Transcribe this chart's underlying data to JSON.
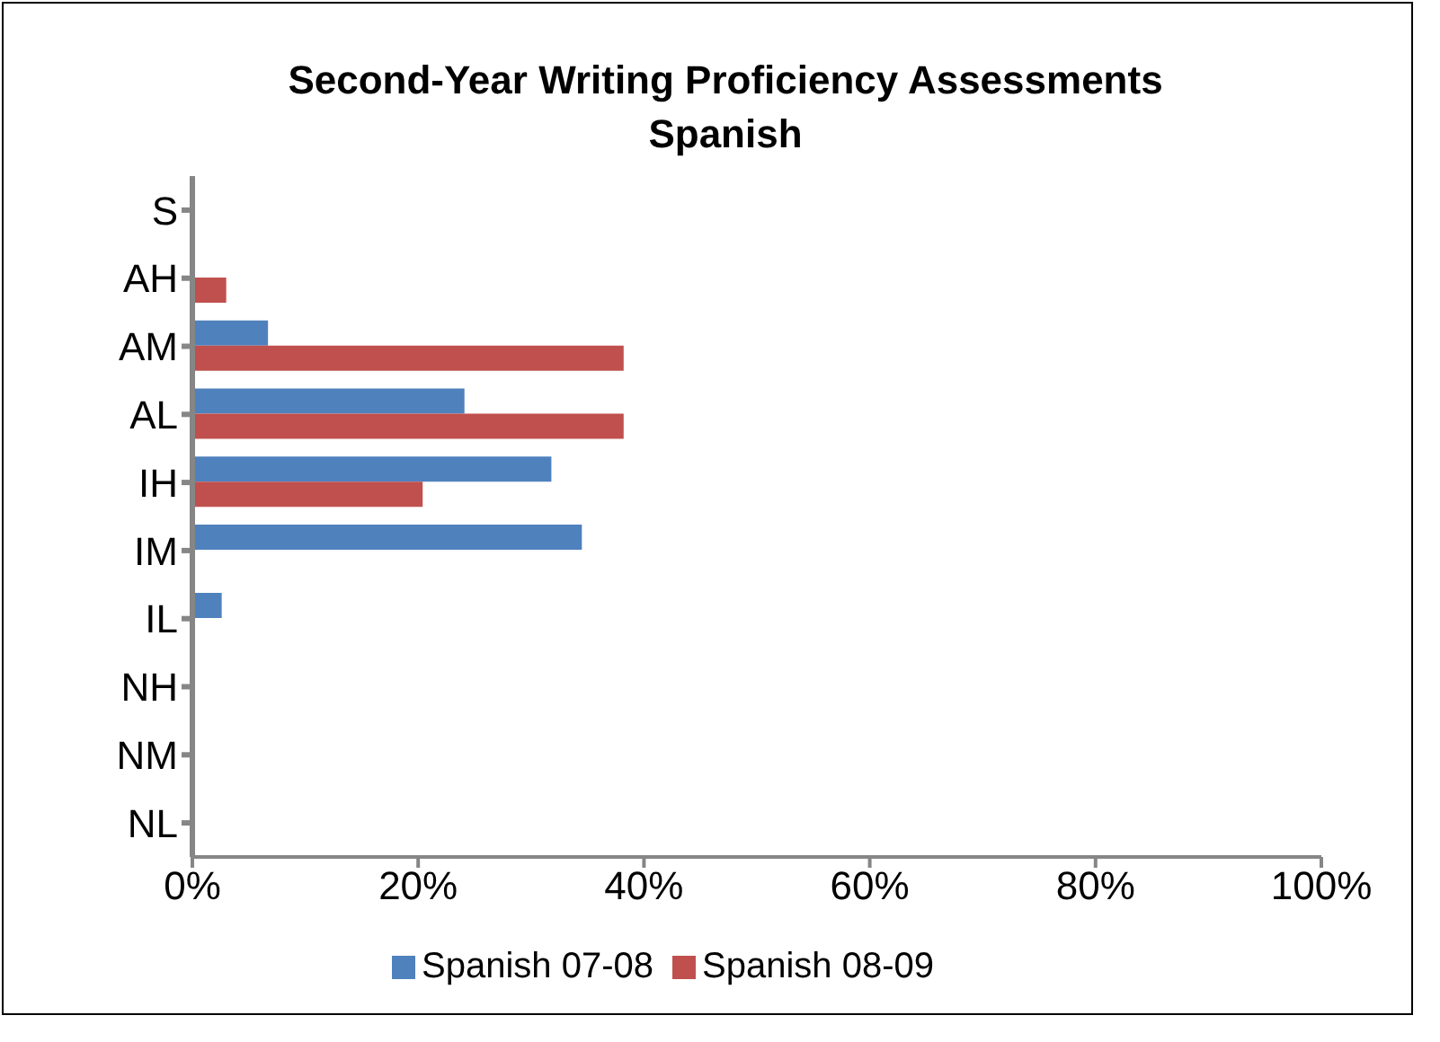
{
  "chart_data": {
    "type": "bar",
    "orientation": "horizontal",
    "title": "Second-Year Writing Proficiency Assessments",
    "subtitle": "Spanish",
    "categories": [
      "S",
      "AH",
      "AM",
      "AL",
      "IH",
      "IM",
      "IL",
      "NH",
      "NM",
      "NL"
    ],
    "series": [
      {
        "name": "Spanish 07-08",
        "color": "#4f81bd",
        "values": [
          0,
          0,
          6.7,
          24.1,
          31.8,
          34.5,
          2.6,
          0,
          0,
          0
        ]
      },
      {
        "name": "Spanish 08-09",
        "color": "#c0504d",
        "values": [
          0,
          3,
          38.2,
          38.2,
          20.4,
          0,
          0,
          0,
          0,
          0
        ]
      }
    ],
    "xlim": [
      0,
      100
    ],
    "xticks": [
      {
        "value": 0,
        "label": "0%"
      },
      {
        "value": 20,
        "label": "20%"
      },
      {
        "value": 40,
        "label": "40%"
      },
      {
        "value": 60,
        "label": "60%"
      },
      {
        "value": 80,
        "label": "80%"
      },
      {
        "value": 100,
        "label": "100%"
      }
    ],
    "grid": false,
    "legend": "bottom"
  }
}
